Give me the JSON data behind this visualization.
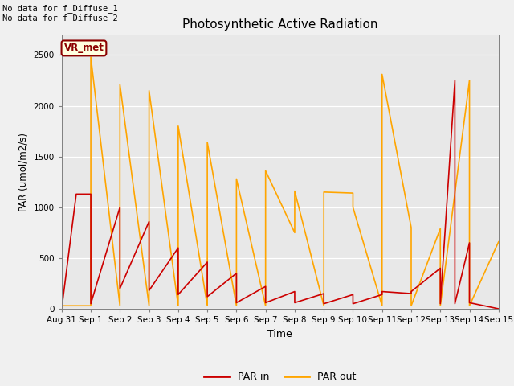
{
  "title": "Photosynthetic Active Radiation",
  "xlabel": "Time",
  "ylabel": "PAR (umol/m2/s)",
  "text_top_left": "No data for f_Diffuse_1\nNo data for f_Diffuse_2",
  "legend_box_label": "VR_met",
  "ylim": [
    0,
    2700
  ],
  "figsize": [
    6.4,
    4.8
  ],
  "dpi": 100,
  "background_color": "#f0f0f0",
  "plot_bg_color": "#e8e8e8",
  "par_in_color": "#cc0000",
  "par_out_color": "#ffa500",
  "x_tick_labels": [
    "Aug 31",
    "Sep 1",
    "Sep 2",
    "Sep 3",
    "Sep 4",
    "Sep 5",
    "Sep 6",
    "Sep 7",
    "Sep 8",
    "Sep 9",
    "Sep 10",
    "Sep 11",
    "Sep 12",
    "Sep 13",
    "Sep 14",
    "Sep 15"
  ],
  "par_in_xv": [
    0,
    0.5,
    1,
    1,
    2,
    2,
    3,
    3,
    4,
    4,
    5,
    5,
    6,
    6,
    7,
    7,
    8,
    8,
    9,
    9,
    10,
    10,
    11,
    11,
    12,
    12,
    13,
    13,
    13.5,
    13.5,
    14,
    14,
    15
  ],
  "par_in_yv": [
    0,
    1130,
    1130,
    50,
    1000,
    200,
    860,
    180,
    600,
    140,
    460,
    120,
    350,
    60,
    220,
    60,
    170,
    60,
    150,
    50,
    140,
    50,
    140,
    170,
    150,
    170,
    400,
    50,
    2250,
    50,
    650,
    60,
    0
  ],
  "par_out_xv": [
    0,
    1,
    1,
    2,
    2,
    3,
    3,
    4,
    4,
    5,
    5,
    6,
    6,
    7,
    7,
    8,
    8,
    9,
    9,
    10,
    10,
    11,
    11,
    12,
    12,
    13,
    13,
    14,
    14,
    15
  ],
  "par_out_yv": [
    30,
    30,
    2480,
    30,
    2210,
    30,
    2150,
    30,
    1800,
    30,
    1640,
    30,
    1280,
    30,
    1360,
    750,
    1160,
    30,
    1150,
    1140,
    1000,
    30,
    2310,
    800,
    30,
    790,
    30,
    2250,
    30,
    660
  ]
}
